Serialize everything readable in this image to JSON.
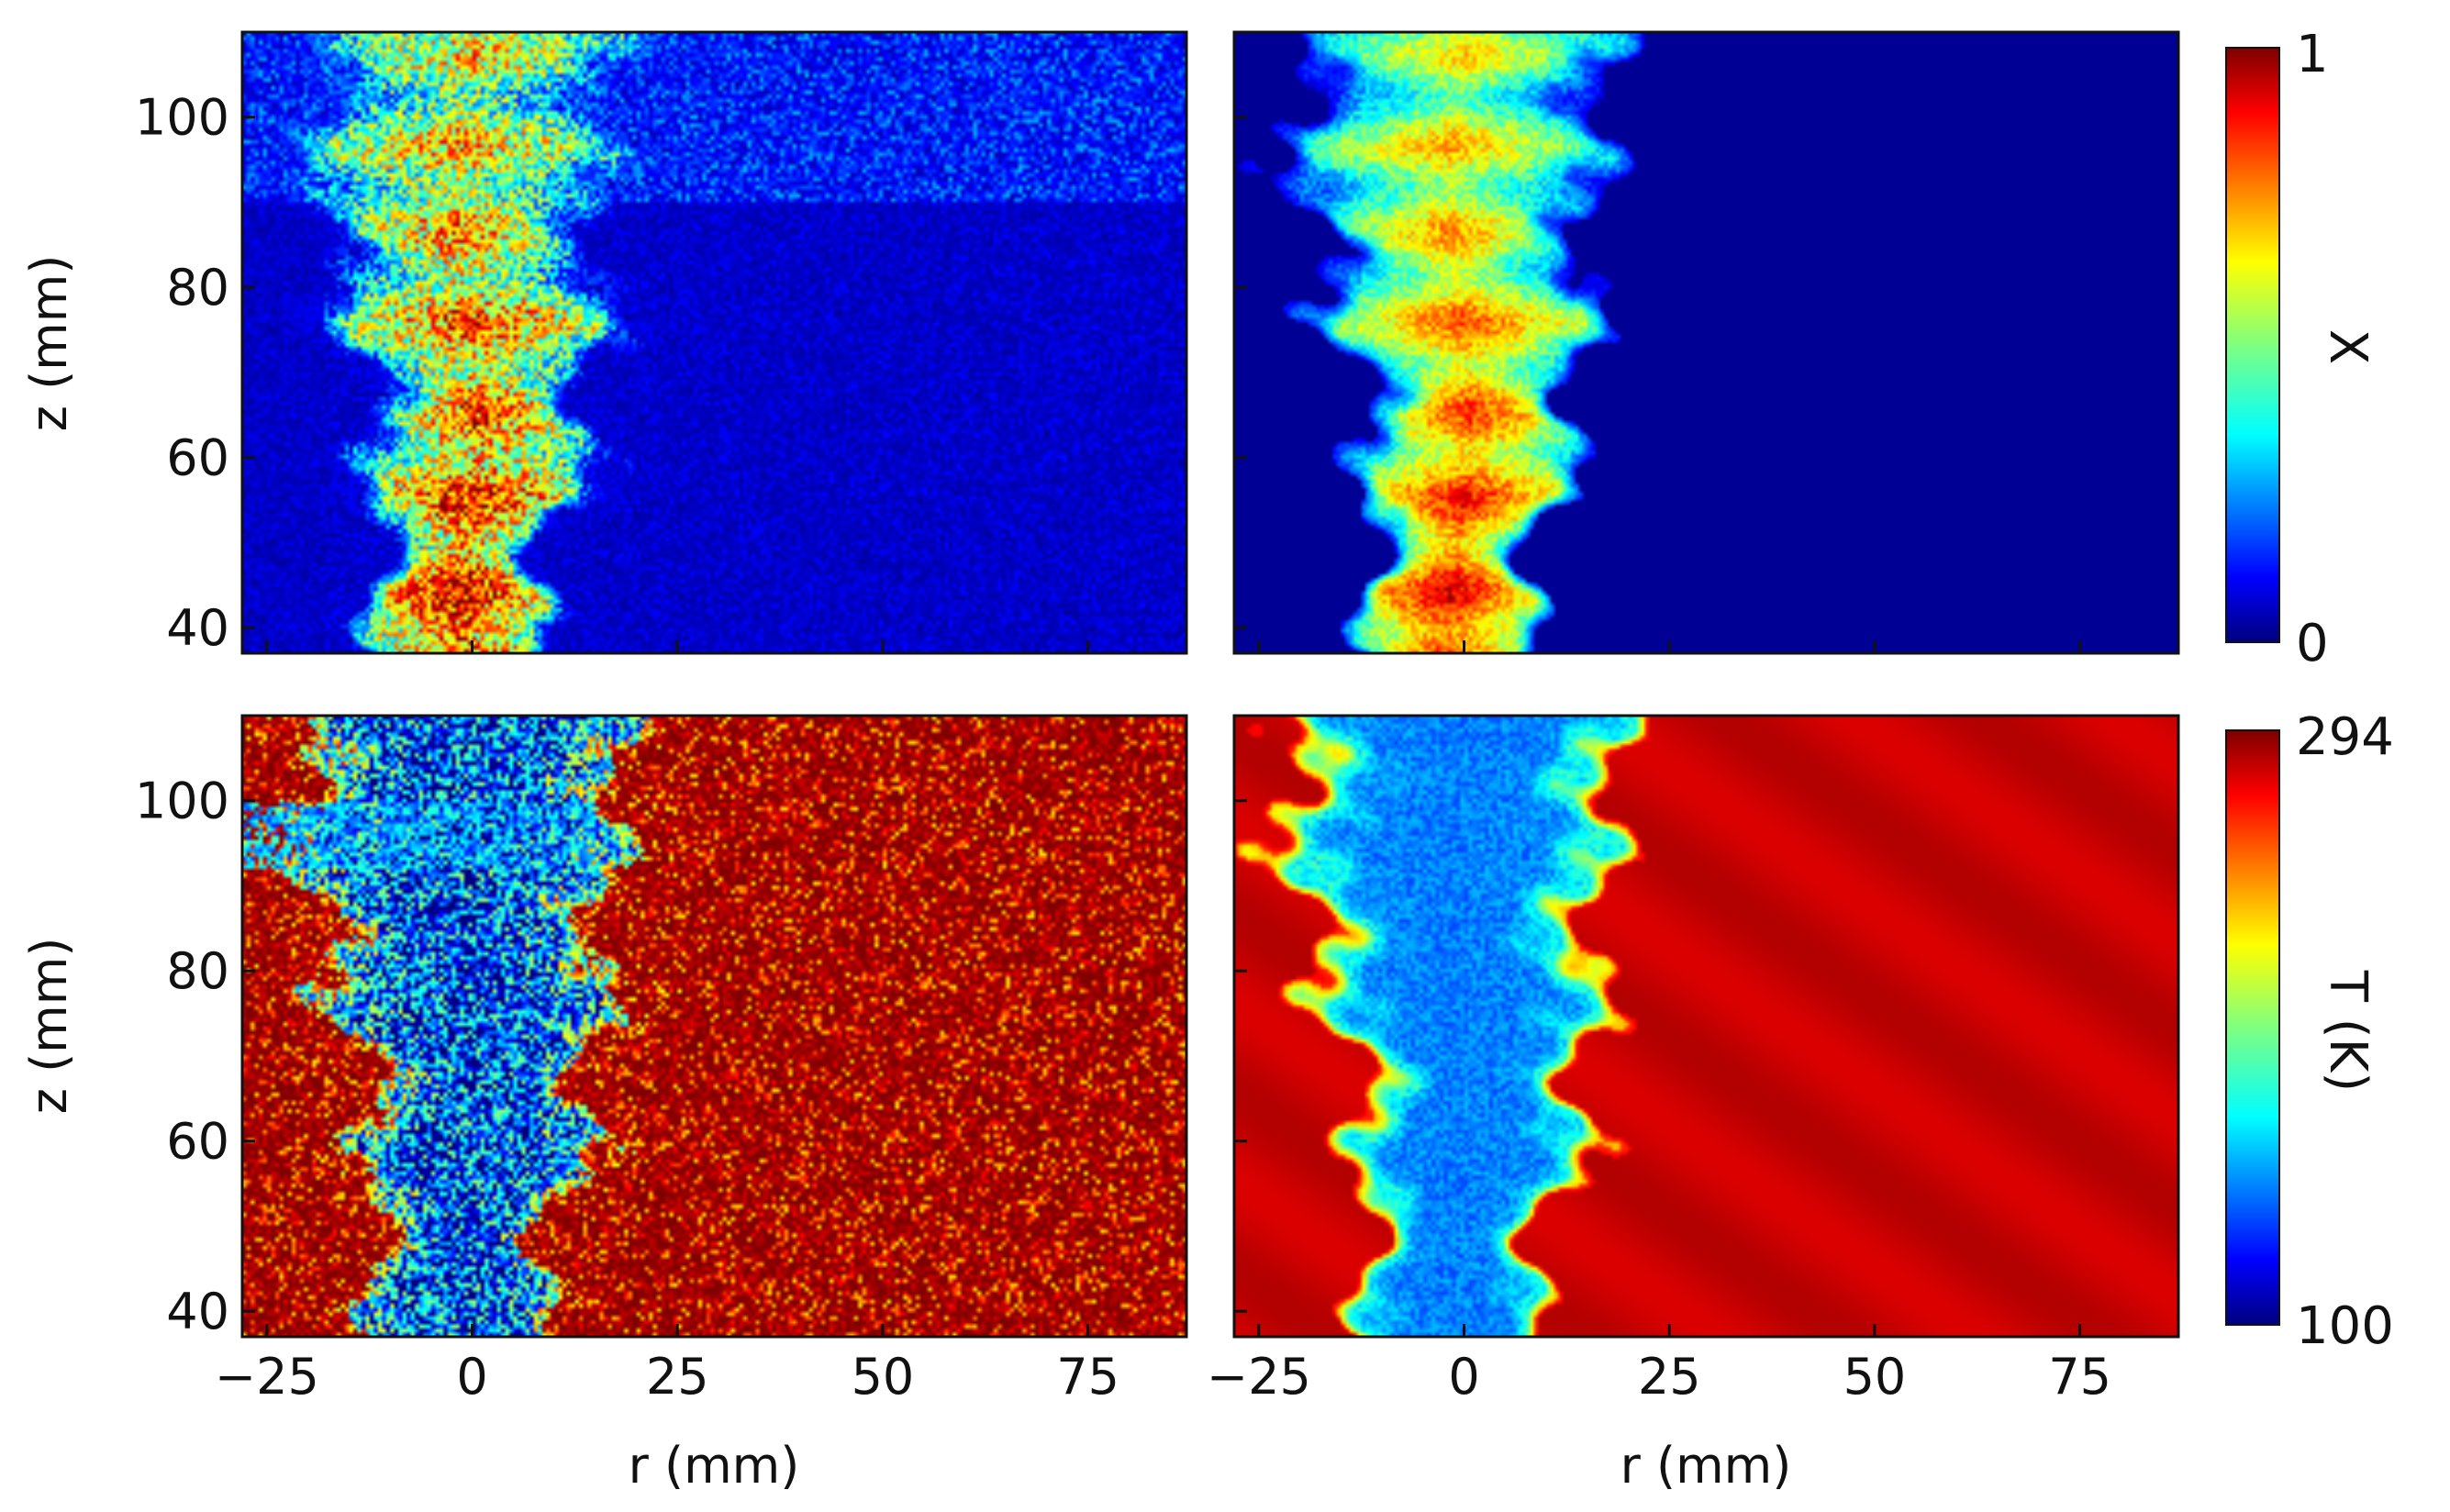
{
  "chart_data": [
    {
      "type": "heatmap",
      "panel": "top-left",
      "field": "X",
      "x_ticks": [
        -25,
        0,
        25,
        50,
        75
      ],
      "y_ticks": [
        40,
        60,
        80,
        100
      ],
      "xlim": [
        -28,
        87
      ],
      "ylim": [
        37,
        110
      ],
      "ylabel": "z (mm)",
      "xlabel": "",
      "data_source": "raw measurement (noisy)",
      "jet_core": {
        "r_range_at_z40": [
          -8,
          7
        ],
        "r_range_at_z100": [
          -18,
          18
        ],
        "peak_value": 0.85
      },
      "ambient_value": 0.05
    },
    {
      "type": "heatmap",
      "panel": "top-right",
      "field": "X",
      "x_ticks": [
        -25,
        0,
        25,
        50,
        75
      ],
      "y_ticks": [
        40,
        60,
        80,
        100
      ],
      "xlim": [
        -28,
        87
      ],
      "ylim": [
        37,
        110
      ],
      "ylabel": "",
      "xlabel": "",
      "data_source": "denoised / reconstructed",
      "jet_core": {
        "r_range_at_z40": [
          -8,
          7
        ],
        "r_range_at_z100": [
          -18,
          18
        ],
        "peak_value": 0.8
      },
      "ambient_value": 0.0
    },
    {
      "type": "heatmap",
      "panel": "bottom-left",
      "field": "T",
      "x_ticks": [
        -25,
        0,
        25,
        50,
        75
      ],
      "y_ticks": [
        40,
        60,
        80,
        100
      ],
      "xlim": [
        -28,
        87
      ],
      "ylim": [
        37,
        110
      ],
      "ylabel": "z (mm)",
      "xlabel": "r (mm)",
      "data_source": "raw measurement (noisy)",
      "jet_core_value": 130,
      "ambient_value": 294
    },
    {
      "type": "heatmap",
      "panel": "bottom-right",
      "field": "T",
      "x_ticks": [
        -25,
        0,
        25,
        50,
        75
      ],
      "y_ticks": [
        40,
        60,
        80,
        100
      ],
      "xlim": [
        -28,
        87
      ],
      "ylim": [
        37,
        110
      ],
      "ylabel": "",
      "xlabel": "r (mm)",
      "data_source": "denoised / reconstructed",
      "jet_core_value": 150,
      "ambient_value": 294
    }
  ],
  "colorbars": [
    {
      "label": "X",
      "min_label": "0",
      "max_label": "1",
      "min": 0,
      "max": 1,
      "colormap": "jet"
    },
    {
      "label": "T (K)",
      "min_label": "100",
      "max_label": "294",
      "min": 100,
      "max": 294,
      "colormap": "jet"
    }
  ],
  "labels": {
    "x_tick_labels": [
      "−25",
      "0",
      "25",
      "50",
      "75"
    ],
    "y_tick_labels": [
      "40",
      "60",
      "80",
      "100"
    ],
    "ylabel_top": "z (mm)",
    "ylabel_bottom": "z (mm)",
    "xlabel_left": "r (mm)",
    "xlabel_right": "r (mm)"
  }
}
